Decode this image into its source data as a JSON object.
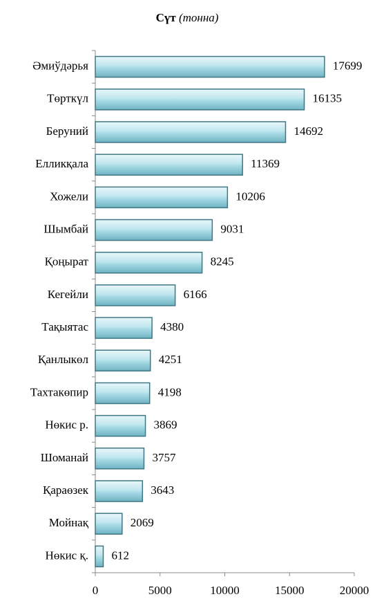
{
  "chart_data": {
    "type": "barh",
    "title": "Сүт",
    "unit": "(тонна)",
    "categories": [
      "Әмиўдәрья",
      "Төрткүл",
      "Беруний",
      "Елликқала",
      "Хожели",
      "Шымбай",
      "Қоңырат",
      "Кегейли",
      "Тақыятас",
      "Қанлыкөл",
      "Тахтакөпир",
      "Нөкис р.",
      "Шоманай",
      "Қараөзек",
      "Мойнақ",
      "Нөкис қ."
    ],
    "values": [
      17699,
      16135,
      14692,
      11369,
      10206,
      9031,
      8245,
      6166,
      4380,
      4251,
      4198,
      3869,
      3757,
      3643,
      2069,
      612
    ],
    "color": "#a8dbe6",
    "xlim": [
      0,
      20000
    ],
    "xticks": [
      0,
      5000,
      10000,
      15000,
      20000
    ],
    "grid": false
  }
}
